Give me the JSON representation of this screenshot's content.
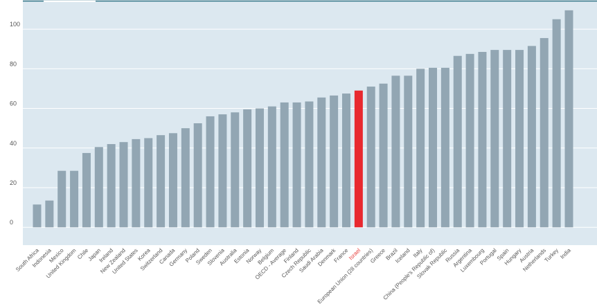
{
  "chart_data": {
    "type": "bar",
    "title": "",
    "xlabel": "",
    "ylabel": "",
    "ylim": [
      -9,
      114
    ],
    "yticks": [
      0,
      20,
      40,
      60,
      80,
      100
    ],
    "grid": true,
    "legend": "none",
    "highlight_category": "Israel",
    "colors": {
      "bar": "#92a6b3",
      "highlight": "#e8292f",
      "plot_background": "#dce8f0",
      "gridline": "#ffffff",
      "top_rule": "#2a6f82",
      "tick_text": "#555555",
      "highlight_text": "#e8413e"
    },
    "categories": [
      "South Africa",
      "Indonesia",
      "Mexico",
      "United Kingdom",
      "Chile",
      "Japan",
      "Ireland",
      "New Zealand",
      "United States",
      "Korea",
      "Switzerland",
      "Canada",
      "Germany",
      "Poland",
      "Sweden",
      "Slovenia",
      "Australia",
      "Estonia",
      "Norway",
      "Belgium",
      "OECD - Average",
      "Finland",
      "Czech Republic",
      "Saudi Arabia",
      "Denmark",
      "France",
      "Israel",
      "European Union (28 countries)",
      "Greece",
      "Brazil",
      "Iceland",
      "Italy",
      "China (People's Republic of)",
      "Slovak Republic",
      "Russia",
      "Argentina",
      "Luxembourg",
      "Portugal",
      "Spain",
      "Hungary",
      "Austria",
      "Netherlands",
      "Turkey",
      "India"
    ],
    "values": [
      11.5,
      13.5,
      28.5,
      28.5,
      37.5,
      40.5,
      42,
      43,
      44.5,
      45,
      46.5,
      47.5,
      50,
      52.5,
      56,
      57,
      58,
      59.5,
      60,
      61,
      63,
      63,
      63.5,
      65.5,
      66.5,
      67.5,
      69,
      71,
      72.5,
      76.5,
      76.5,
      80,
      80.5,
      80.5,
      86.5,
      87.5,
      88.5,
      89.5,
      89.5,
      89.5,
      91.5,
      95.5,
      105,
      109.5
    ]
  }
}
